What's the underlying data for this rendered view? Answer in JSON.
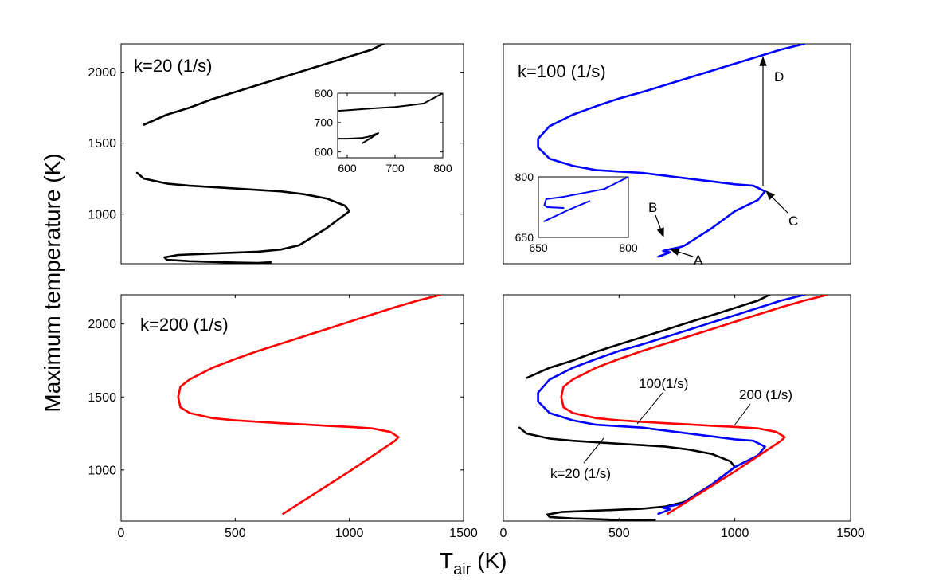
{
  "figure": {
    "ylabel": "Maximum temperature (K)",
    "xlabel_main": "T",
    "xlabel_sub": "air",
    "xlabel_unit": " (K)"
  },
  "colors": {
    "k20": "#000000",
    "k100": "#0000ff",
    "k200": "#ff0000"
  },
  "chart_data": [
    {
      "type": "line",
      "panel": "top-left",
      "label": "k=20 (1/s)",
      "xlim": [
        0,
        1500
      ],
      "ylim": [
        650,
        2200
      ],
      "xticks": [],
      "yticks": [
        1000,
        1500,
        2000
      ],
      "series": [
        {
          "color": "#000000",
          "x": [
            655,
            600,
            500,
            400,
            300,
            200,
            190,
            250,
            400,
            500,
            600,
            700,
            780,
            900,
            1000,
            980,
            900,
            800,
            700,
            600,
            500,
            400,
            300,
            200,
            100,
            70
          ],
          "y": [
            660,
            655,
            658,
            663,
            668,
            678,
            695,
            712,
            722,
            728,
            735,
            750,
            780,
            900,
            1020,
            1060,
            1110,
            1140,
            1160,
            1170,
            1180,
            1190,
            1200,
            1215,
            1250,
            1290
          ]
        },
        {
          "color": "#000000",
          "x": [
            100,
            200,
            300,
            400,
            500,
            600,
            700,
            800,
            900,
            1000,
            1100,
            1150
          ],
          "y": [
            1630,
            1700,
            1750,
            1810,
            1860,
            1910,
            1960,
            2010,
            2060,
            2110,
            2160,
            2200
          ]
        }
      ],
      "inset": {
        "xlim": [
          580,
          800
        ],
        "ylim": [
          580,
          800
        ],
        "xticks": [
          600,
          700,
          800
        ],
        "yticks": [
          600,
          700,
          800
        ],
        "series": [
          {
            "color": "#000000",
            "x": [
              580,
              600,
              650,
              700,
              760,
              800
            ],
            "y": [
              740,
              742,
              748,
              753,
              765,
              800
            ]
          },
          {
            "color": "#000000",
            "x": [
              580,
              600,
              630,
              645,
              665,
              650,
              632
            ],
            "y": [
              645,
              645,
              647,
              652,
              664,
              648,
              630
            ]
          }
        ]
      }
    },
    {
      "type": "line",
      "panel": "top-right",
      "label": "k=100 (1/s)",
      "xlim": [
        0,
        1500
      ],
      "ylim": [
        650,
        2200
      ],
      "xticks": [],
      "yticks": [],
      "series": [
        {
          "color": "#0000ff",
          "x": [
            670,
            720,
            690,
            720,
            760,
            780,
            900,
            1000,
            1100,
            1130,
            1080,
            1000,
            900,
            800,
            700,
            600,
            500,
            400,
            300,
            200,
            150,
            150,
            200,
            300,
            400,
            500,
            600,
            700,
            800,
            900,
            1000,
            1100,
            1200,
            1300
          ],
          "y": [
            700,
            730,
            740,
            752,
            765,
            775,
            900,
            1020,
            1100,
            1160,
            1200,
            1210,
            1230,
            1250,
            1270,
            1290,
            1300,
            1310,
            1340,
            1390,
            1470,
            1530,
            1620,
            1700,
            1760,
            1815,
            1860,
            1910,
            1960,
            2010,
            2060,
            2110,
            2160,
            2200
          ]
        }
      ],
      "inset": {
        "xlim": [
          650,
          800
        ],
        "ylim": [
          650,
          800
        ],
        "xticks": [
          650,
          800
        ],
        "yticks": [
          650,
          800
        ],
        "series": [
          {
            "color": "#0000ff",
            "x": [
              660,
              700,
              735
            ],
            "y": [
              690,
              718,
              740
            ]
          },
          {
            "color": "#0000ff",
            "x": [
              692,
              665,
              660,
              663,
              690,
              760,
              800
            ],
            "y": [
              723,
              725,
              730,
              745,
              750,
              770,
              800
            ]
          }
        ]
      },
      "annotations": [
        {
          "text": "D",
          "x": 1170,
          "y": 2100
        },
        {
          "text": "C",
          "x": 1200,
          "y": 1000
        },
        {
          "text": "B",
          "x": 720,
          "y": 1000
        },
        {
          "text": "A",
          "x": 820,
          "y": 650
        }
      ]
    },
    {
      "type": "line",
      "panel": "bottom-left",
      "label": "k=200 (1/s)",
      "xlim": [
        0,
        1500
      ],
      "ylim": [
        650,
        2200
      ],
      "xticks": [
        0,
        500,
        1000,
        1500
      ],
      "yticks": [
        1000,
        1500,
        2000
      ],
      "series": [
        {
          "color": "#ff0000",
          "x": [
            710,
            800,
            900,
            1000,
            1100,
            1200,
            1215,
            1180,
            1100,
            1000,
            900,
            800,
            700,
            600,
            500,
            400,
            300,
            260,
            250,
            260,
            300,
            400,
            500,
            600,
            700,
            800,
            900,
            1000,
            1100,
            1200,
            1300,
            1400
          ],
          "y": [
            700,
            790,
            890,
            990,
            1095,
            1200,
            1225,
            1260,
            1285,
            1295,
            1303,
            1312,
            1320,
            1330,
            1340,
            1355,
            1390,
            1430,
            1500,
            1570,
            1620,
            1700,
            1760,
            1815,
            1865,
            1915,
            1965,
            2015,
            2065,
            2115,
            2160,
            2200
          ]
        }
      ]
    },
    {
      "type": "line",
      "panel": "bottom-right",
      "label": "",
      "xlim": [
        0,
        1500
      ],
      "ylim": [
        650,
        2200
      ],
      "xticks": [
        0,
        500,
        1000,
        1500
      ],
      "yticks": [],
      "series": [
        {
          "name": "k=20 (1/s)",
          "color": "#000000",
          "x": [
            655,
            600,
            500,
            400,
            300,
            200,
            190,
            250,
            400,
            500,
            600,
            700,
            780,
            900,
            1000,
            980,
            900,
            800,
            700,
            600,
            500,
            400,
            300,
            200,
            100,
            70
          ],
          "y": [
            660,
            655,
            658,
            663,
            668,
            678,
            695,
            712,
            722,
            728,
            735,
            750,
            780,
            900,
            1020,
            1060,
            1110,
            1140,
            1160,
            1170,
            1180,
            1190,
            1200,
            1215,
            1250,
            1290
          ]
        },
        {
          "name": "k=20 (1/s)",
          "color": "#000000",
          "x": [
            100,
            200,
            300,
            400,
            500,
            600,
            700,
            800,
            900,
            1000,
            1100,
            1150
          ],
          "y": [
            1630,
            1700,
            1750,
            1810,
            1860,
            1910,
            1960,
            2010,
            2060,
            2110,
            2160,
            2200
          ]
        },
        {
          "name": "100(1/s)",
          "color": "#0000ff",
          "x": [
            670,
            720,
            690,
            720,
            760,
            780,
            900,
            1000,
            1100,
            1130,
            1080,
            1000,
            900,
            800,
            700,
            600,
            500,
            400,
            300,
            200,
            150,
            150,
            200,
            300,
            400,
            500,
            600,
            700,
            800,
            900,
            1000,
            1100,
            1200,
            1300
          ],
          "y": [
            700,
            730,
            740,
            752,
            765,
            775,
            900,
            1020,
            1100,
            1160,
            1200,
            1210,
            1230,
            1250,
            1270,
            1290,
            1300,
            1310,
            1340,
            1390,
            1470,
            1530,
            1620,
            1700,
            1760,
            1815,
            1860,
            1910,
            1960,
            2010,
            2060,
            2110,
            2160,
            2200
          ]
        },
        {
          "name": "200 (1/s)",
          "color": "#ff0000",
          "x": [
            710,
            800,
            900,
            1000,
            1100,
            1200,
            1215,
            1180,
            1100,
            1000,
            900,
            800,
            700,
            600,
            500,
            400,
            300,
            260,
            250,
            260,
            300,
            400,
            500,
            600,
            700,
            800,
            900,
            1000,
            1100,
            1200,
            1300,
            1400
          ],
          "y": [
            700,
            790,
            890,
            990,
            1095,
            1200,
            1225,
            1260,
            1285,
            1295,
            1303,
            1312,
            1320,
            1330,
            1340,
            1355,
            1390,
            1430,
            1500,
            1570,
            1620,
            1700,
            1760,
            1815,
            1865,
            1915,
            1965,
            2015,
            2065,
            2115,
            2160,
            2200
          ]
        }
      ],
      "annotations": [
        {
          "text": "100(1/s)",
          "x": 600,
          "y": 1580
        },
        {
          "text": "200 (1/s)",
          "x": 1080,
          "y": 1500
        },
        {
          "text": "k=20 (1/s)",
          "x": 580,
          "y": 1000
        }
      ]
    }
  ]
}
